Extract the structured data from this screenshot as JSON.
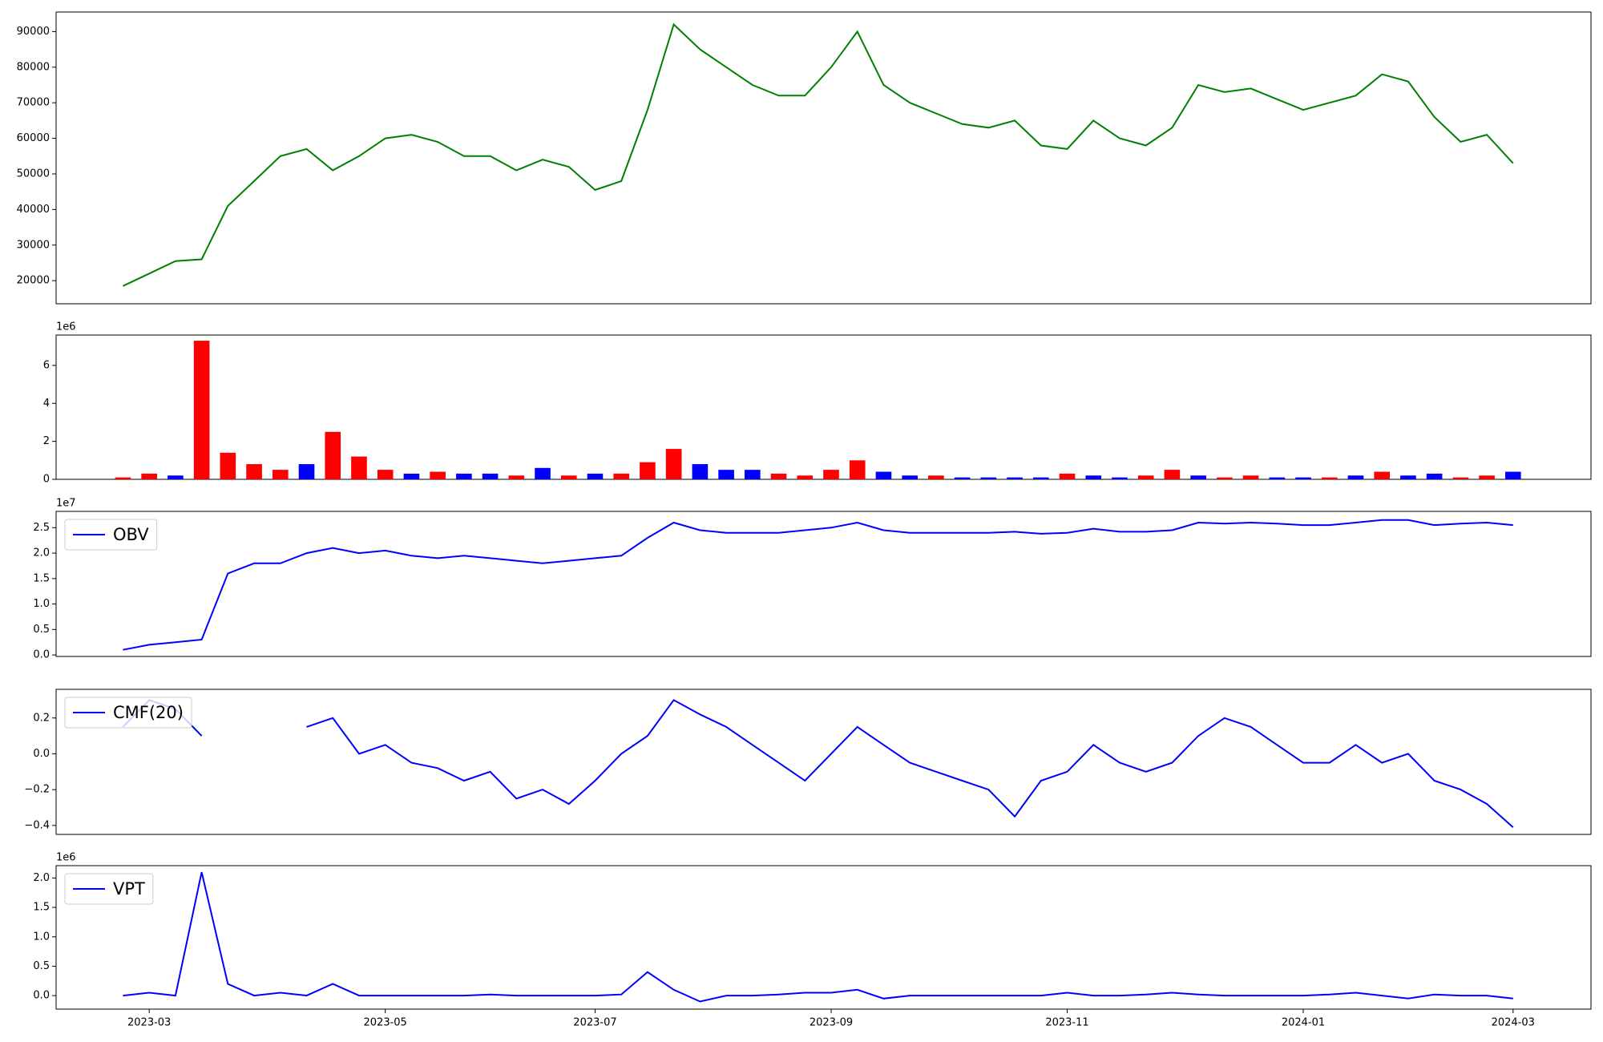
{
  "chart_data": [
    {
      "type": "line",
      "color": "#008000",
      "values": [
        18500,
        22000,
        25500,
        26000,
        41000,
        48000,
        55000,
        57000,
        51000,
        55000,
        60000,
        61000,
        59000,
        55000,
        55000,
        51000,
        54000,
        52000,
        45500,
        48000,
        68000,
        92000,
        85000,
        80000,
        75000,
        72000,
        72000,
        80000,
        90000,
        75000,
        70000,
        67000,
        64000,
        63000,
        65000,
        58000,
        57000,
        65000,
        60000,
        58000,
        63000,
        75000,
        73000,
        74000,
        71000,
        68000,
        70000,
        72000,
        78000,
        76000,
        66000,
        59000,
        61000,
        53000
      ],
      "ylim": [
        13500,
        95500
      ],
      "yticks": [
        20000,
        30000,
        40000,
        50000,
        60000,
        70000,
        80000,
        90000
      ]
    },
    {
      "type": "bar",
      "offset_label": "1e6",
      "values": [
        0.1,
        0.3,
        0.2,
        7.3,
        1.4,
        0.8,
        0.5,
        0.8,
        2.5,
        1.2,
        0.5,
        0.3,
        0.4,
        0.3,
        0.3,
        0.2,
        0.6,
        0.2,
        0.3,
        0.3,
        0.9,
        1.6,
        0.8,
        0.5,
        0.5,
        0.3,
        0.2,
        0.5,
        1.0,
        0.4,
        0.2,
        0.2,
        0.1,
        0.1,
        0.1,
        0.1,
        0.3,
        0.2,
        0.1,
        0.2,
        0.5,
        0.2,
        0.1,
        0.2,
        0.1,
        0.1,
        0.1,
        0.2,
        0.4,
        0.2,
        0.3,
        0.1,
        0.2,
        0.4
      ],
      "colors": [
        "red",
        "red",
        "blue",
        "red",
        "red",
        "red",
        "red",
        "blue",
        "red",
        "red",
        "red",
        "blue",
        "red",
        "blue",
        "blue",
        "red",
        "blue",
        "red",
        "blue",
        "red",
        "red",
        "red",
        "blue",
        "blue",
        "blue",
        "red",
        "red",
        "red",
        "red",
        "blue",
        "blue",
        "red",
        "blue",
        "blue",
        "blue",
        "blue",
        "red",
        "blue",
        "blue",
        "red",
        "red",
        "blue",
        "red",
        "red",
        "blue",
        "blue",
        "red",
        "blue",
        "red",
        "blue",
        "blue",
        "red",
        "red",
        "blue"
      ],
      "ylim": [
        0,
        7.6
      ],
      "yticks": [
        0,
        2,
        4,
        6
      ]
    },
    {
      "type": "line",
      "offset_label": "1e7",
      "series": [
        {
          "name": "OBV",
          "color": "blue",
          "values": [
            0.1,
            0.2,
            0.25,
            0.3,
            1.6,
            1.8,
            1.8,
            2.0,
            2.1,
            2.0,
            2.05,
            1.95,
            1.9,
            1.95,
            1.9,
            1.85,
            1.8,
            1.85,
            1.9,
            1.95,
            2.3,
            2.6,
            2.45,
            2.4,
            2.4,
            2.4,
            2.45,
            2.5,
            2.6,
            2.45,
            2.4,
            2.4,
            2.4,
            2.4,
            2.42,
            2.38,
            2.4,
            2.48,
            2.42,
            2.42,
            2.45,
            2.6,
            2.58,
            2.6,
            2.58,
            2.55,
            2.55,
            2.6,
            2.65,
            2.65,
            2.55,
            2.58,
            2.6,
            2.55
          ]
        }
      ],
      "ylim": [
        -0.03,
        2.82
      ],
      "yticks": [
        {
          "value": 0,
          "label": "0.0"
        },
        0.5,
        {
          "value": 1,
          "label": "1.0"
        },
        1.5,
        {
          "value": 2,
          "label": "2.0"
        },
        2.5
      ],
      "legend": "upper left"
    },
    {
      "type": "line",
      "series": [
        {
          "name": "CMF(20)",
          "color": "blue",
          "values": [
            0.15,
            0.3,
            0.25,
            0.1,
            null,
            null,
            null,
            0.15,
            0.2,
            0.0,
            0.05,
            -0.05,
            -0.08,
            -0.15,
            -0.1,
            -0.25,
            -0.2,
            -0.28,
            -0.15,
            0.0,
            0.1,
            0.3,
            0.22,
            0.15,
            0.05,
            -0.05,
            -0.15,
            0.0,
            0.15,
            0.05,
            -0.05,
            -0.1,
            -0.15,
            -0.2,
            -0.35,
            -0.15,
            -0.1,
            0.05,
            -0.05,
            -0.1,
            -0.05,
            0.1,
            0.2,
            0.15,
            0.05,
            -0.05,
            -0.05,
            0.05,
            -0.05,
            0.0,
            -0.15,
            -0.2,
            -0.28,
            -0.41
          ]
        }
      ],
      "ylim": [
        -0.45,
        0.36
      ],
      "yticks": [
        {
          "value": -0.4,
          "label": "−0.4"
        },
        {
          "value": -0.2,
          "label": "−0.2"
        },
        {
          "value": 0,
          "label": "0.0"
        },
        0.2
      ],
      "legend": "upper left"
    },
    {
      "type": "line",
      "offset_label": "1e6",
      "series": [
        {
          "name": "VPT",
          "color": "blue",
          "values": [
            0.0,
            0.05,
            0.0,
            2.1,
            0.2,
            0.0,
            0.05,
            0.0,
            0.2,
            0.0,
            0.0,
            0.0,
            0.0,
            0.0,
            0.02,
            0.0,
            0.0,
            0.0,
            0.0,
            0.02,
            0.4,
            0.1,
            -0.1,
            0.0,
            0.0,
            0.02,
            0.05,
            0.05,
            0.1,
            -0.05,
            0.0,
            0.0,
            0.0,
            0.0,
            0.0,
            0.0,
            0.05,
            0.0,
            0.0,
            0.02,
            0.05,
            0.02,
            0.0,
            0.0,
            0.0,
            0.0,
            0.02,
            0.05,
            0.0,
            -0.05,
            0.02,
            0.0,
            0.0,
            -0.05
          ]
        }
      ],
      "ylim": [
        -0.23,
        2.21
      ],
      "yticks": [
        {
          "value": 0,
          "label": "0.0"
        },
        0.5,
        {
          "value": 1,
          "label": "1.0"
        },
        1.5,
        {
          "value": 2,
          "label": "2.0"
        }
      ],
      "legend": "upper left",
      "categories": [
        null,
        "2023-03",
        null,
        null,
        null,
        null,
        null,
        null,
        null,
        null,
        "2023-05",
        null,
        null,
        null,
        null,
        null,
        null,
        null,
        "2023-07",
        null,
        null,
        null,
        null,
        null,
        null,
        null,
        null,
        "2023-09",
        null,
        null,
        null,
        null,
        null,
        null,
        null,
        null,
        "2023-11",
        null,
        null,
        null,
        null,
        null,
        null,
        null,
        null,
        "2024-01",
        null,
        null,
        null,
        null,
        null,
        null,
        null,
        "2024-03"
      ]
    }
  ]
}
